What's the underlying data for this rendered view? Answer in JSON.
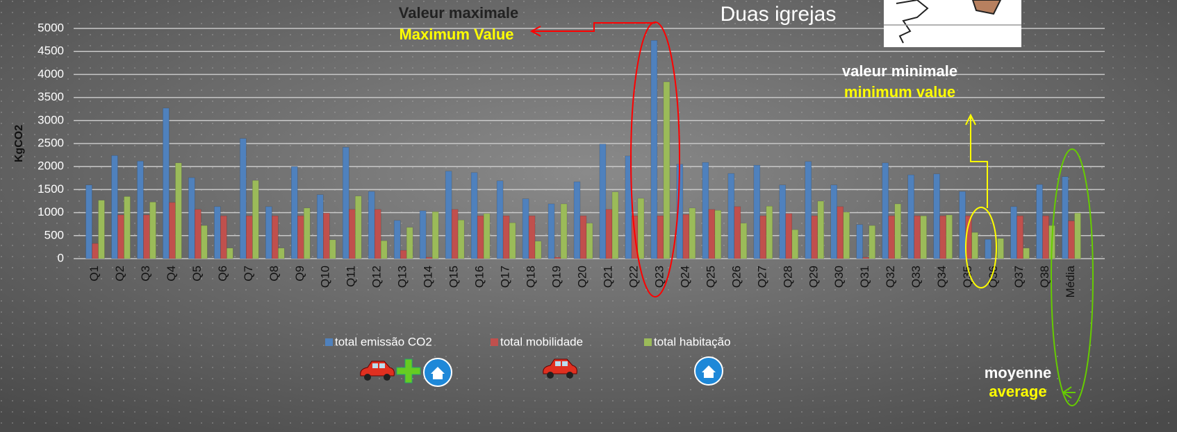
{
  "chart_data": {
    "type": "bar",
    "title": "Duas igrejas",
    "y_label": "KgCO2",
    "categories": [
      "Q1",
      "Q2",
      "Q3",
      "Q4",
      "Q5",
      "Q6",
      "Q7",
      "Q8",
      "Q9",
      "Q10",
      "Q11",
      "Q12",
      "Q13",
      "Q14",
      "Q15",
      "Q16",
      "Q17",
      "Q18",
      "Q19",
      "Q20",
      "Q21",
      "Q22",
      "Q23",
      "Q24",
      "Q25",
      "Q26",
      "Q27",
      "Q28",
      "Q29",
      "Q30",
      "Q31",
      "Q32",
      "Q33",
      "Q34",
      "Q35",
      "Q36",
      "Q37",
      "Q38",
      "Média"
    ],
    "series": [
      {
        "name": "total emissão CO2",
        "color": "#4f81bd",
        "values": [
          1600,
          2240,
          2120,
          3270,
          1760,
          1130,
          2610,
          1130,
          2000,
          1390,
          2420,
          1460,
          830,
          1040,
          1900,
          1870,
          1690,
          1300,
          1190,
          1670,
          2490,
          2230,
          4740,
          2050,
          2090,
          1850,
          2030,
          1600,
          2110,
          1600,
          740,
          2080,
          1820,
          1840,
          1460,
          420,
          1130,
          1610,
          1780
        ]
      },
      {
        "name": "total mobilidade",
        "color": "#c0504d",
        "values": [
          330,
          950,
          950,
          1220,
          1070,
          930,
          930,
          930,
          930,
          990,
          1070,
          1070,
          180,
          30,
          1070,
          930,
          930,
          930,
          30,
          930,
          1070,
          930,
          930,
          960,
          1070,
          1130,
          930,
          980,
          930,
          1130,
          30,
          930,
          930,
          930,
          930,
          0,
          930,
          930,
          820
        ]
      },
      {
        "name": "total habitação",
        "color": "#9bbb59",
        "values": [
          1270,
          1350,
          1230,
          2080,
          720,
          230,
          1700,
          230,
          1100,
          410,
          1360,
          390,
          680,
          1020,
          840,
          980,
          780,
          380,
          1190,
          770,
          1450,
          1310,
          3840,
          1100,
          1050,
          770,
          1140,
          630,
          1250,
          1010,
          720,
          1190,
          930,
          950,
          570,
          440,
          230,
          720,
          990
        ]
      }
    ],
    "ylim": [
      0,
      5000
    ],
    "yticks": [
      0,
      500,
      1000,
      1500,
      2000,
      2500,
      3000,
      3500,
      4000,
      4500,
      5000
    ],
    "grid": true,
    "legend": "bottom",
    "annotations": {
      "max_fr": "Valeur maximale",
      "max_en": "Maximum Value",
      "min_fr": "valeur minimale",
      "min_en": "minimum value",
      "avg_fr": "moyenne",
      "avg_en": "average"
    }
  }
}
